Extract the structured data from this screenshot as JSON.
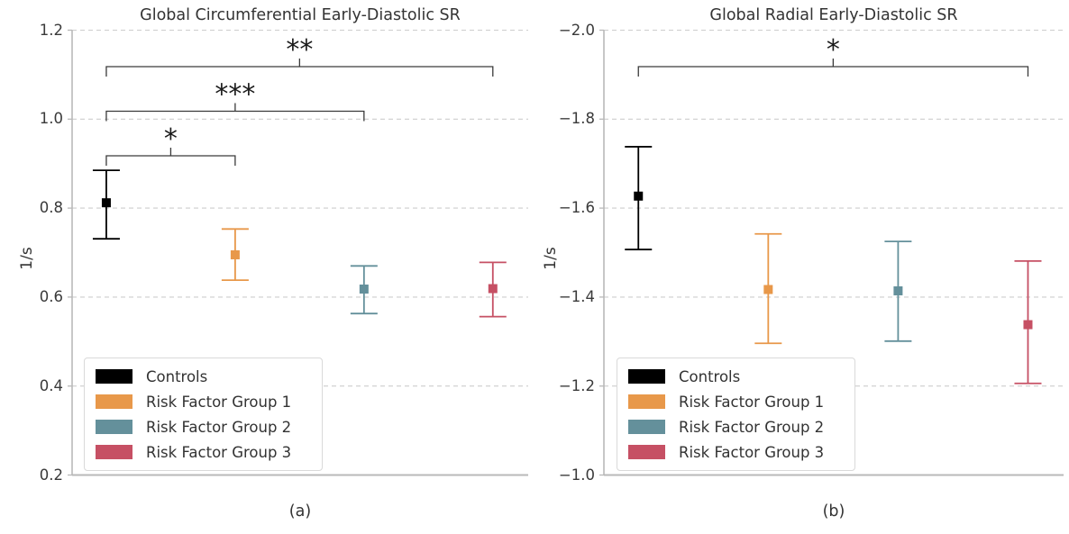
{
  "figure": {
    "background": "#ffffff",
    "grid_color": "#cdcdcd",
    "spine_color": "#b9b9b9",
    "bracket_color": "#3a3a3a",
    "text_color": "#333333"
  },
  "legend": {
    "items": [
      {
        "label": "Controls",
        "color": "#000000"
      },
      {
        "label": "Risk Factor Group 1",
        "color": "#E8984A"
      },
      {
        "label": "Risk Factor Group 2",
        "color": "#64909B"
      },
      {
        "label": "Risk Factor Group 3",
        "color": "#C65064"
      }
    ]
  },
  "chart_data": [
    {
      "type": "scatter",
      "error_bars": true,
      "marker": "square",
      "title": "Global Circumferential Early-Diastolic SR",
      "ylabel": "1/s",
      "xlabel": "(a)",
      "grid": "dashed horizontal",
      "legend_position": "lower left",
      "y_axis": {
        "top": 1.2,
        "bottom": 0.2,
        "inverted": false,
        "ticks": [
          {
            "value": 1.2,
            "label": "1.2"
          },
          {
            "value": 1.0,
            "label": "1.0"
          },
          {
            "value": 0.8,
            "label": "0.8"
          },
          {
            "value": 0.6,
            "label": "0.6"
          },
          {
            "value": 0.4,
            "label": "0.4"
          },
          {
            "value": 0.2,
            "label": "0.2"
          }
        ]
      },
      "points": [
        {
          "group": "Controls",
          "color": "#000000",
          "value": 0.812,
          "err_low": 0.731,
          "err_high": 0.885
        },
        {
          "group": "Risk Factor Group 1",
          "color": "#E8984A",
          "value": 0.695,
          "err_low": 0.638,
          "err_high": 0.753
        },
        {
          "group": "Risk Factor Group 2",
          "color": "#64909B",
          "value": 0.618,
          "err_low": 0.563,
          "err_high": 0.67
        },
        {
          "group": "Risk Factor Group 3",
          "color": "#C65064",
          "value": 0.619,
          "err_low": 0.556,
          "err_high": 0.678
        }
      ],
      "significance": [
        {
          "between": [
            0,
            1
          ],
          "label": "*",
          "level": 0
        },
        {
          "between": [
            0,
            2
          ],
          "label": "***",
          "level": 1
        },
        {
          "between": [
            0,
            3
          ],
          "label": "**",
          "level": 2
        }
      ]
    },
    {
      "type": "scatter",
      "error_bars": true,
      "marker": "square",
      "title": "Global Radial Early-Diastolic SR",
      "ylabel": "1/s",
      "xlabel": "(b)",
      "grid": "dashed horizontal",
      "legend_position": "lower left",
      "y_axis": {
        "top": -2.0,
        "bottom": -1.0,
        "inverted": true,
        "ticks": [
          {
            "value": -2.0,
            "label": "−2.0"
          },
          {
            "value": -1.8,
            "label": "−1.8"
          },
          {
            "value": -1.6,
            "label": "−1.6"
          },
          {
            "value": -1.4,
            "label": "−1.4"
          },
          {
            "value": -1.2,
            "label": "−1.2"
          },
          {
            "value": -1.0,
            "label": "−1.0"
          }
        ]
      },
      "points": [
        {
          "group": "Controls",
          "color": "#000000",
          "value": -1.627,
          "err_low": -1.738,
          "err_high": -1.507
        },
        {
          "group": "Risk Factor Group 1",
          "color": "#E8984A",
          "value": -1.417,
          "err_low": -1.542,
          "err_high": -1.296
        },
        {
          "group": "Risk Factor Group 2",
          "color": "#64909B",
          "value": -1.414,
          "err_low": -1.525,
          "err_high": -1.301
        },
        {
          "group": "Risk Factor Group 3",
          "color": "#C65064",
          "value": -1.338,
          "err_low": -1.481,
          "err_high": -1.206
        }
      ],
      "significance": [
        {
          "between": [
            0,
            3
          ],
          "label": "*",
          "level": 2
        }
      ]
    }
  ]
}
